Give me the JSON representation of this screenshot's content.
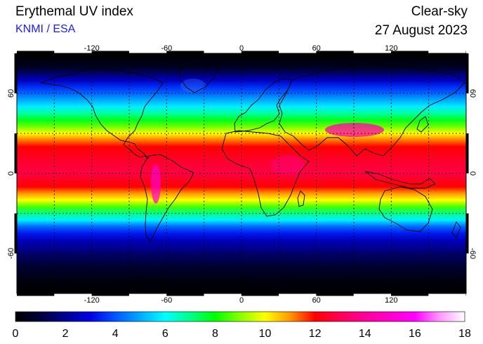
{
  "header": {
    "title": "Erythemal UV index",
    "credit": "KNMI / ESA",
    "mode": "Clear-sky",
    "date": "27 August 2023"
  },
  "map": {
    "projection": "equirectangular",
    "lon_range": [
      -180,
      180
    ],
    "lat_range": [
      -90,
      90
    ],
    "lon_ticks": [
      "-120",
      "-60",
      "0",
      "60",
      "120"
    ],
    "lat_ticks": [
      "60",
      "0",
      "-60"
    ],
    "graticule": "dashed 30°",
    "zonal_uv_profile": [
      {
        "lat": 90,
        "uv": 0
      },
      {
        "lat": 80,
        "uv": 0.5
      },
      {
        "lat": 75,
        "uv": 1.5
      },
      {
        "lat": 70,
        "uv": 2.5
      },
      {
        "lat": 65,
        "uv": 3.5
      },
      {
        "lat": 60,
        "uv": 4.2
      },
      {
        "lat": 55,
        "uv": 5.0
      },
      {
        "lat": 50,
        "uv": 5.8
      },
      {
        "lat": 45,
        "uv": 6.8
      },
      {
        "lat": 40,
        "uv": 7.8
      },
      {
        "lat": 35,
        "uv": 8.8
      },
      {
        "lat": 30,
        "uv": 10.0
      },
      {
        "lat": 25,
        "uv": 11.2
      },
      {
        "lat": 20,
        "uv": 12.0
      },
      {
        "lat": 10,
        "uv": 12.5
      },
      {
        "lat": 0,
        "uv": 12.8
      },
      {
        "lat": -10,
        "uv": 12.0
      },
      {
        "lat": -15,
        "uv": 11.0
      },
      {
        "lat": -20,
        "uv": 10.0
      },
      {
        "lat": -25,
        "uv": 8.5
      },
      {
        "lat": -30,
        "uv": 7.0
      },
      {
        "lat": -35,
        "uv": 5.8
      },
      {
        "lat": -40,
        "uv": 4.2
      },
      {
        "lat": -45,
        "uv": 3.3
      },
      {
        "lat": -50,
        "uv": 2.5
      },
      {
        "lat": -60,
        "uv": 1.6
      },
      {
        "lat": -70,
        "uv": 0.8
      },
      {
        "lat": -80,
        "uv": 0.3
      },
      {
        "lat": -90,
        "uv": 0
      }
    ]
  },
  "colorbar": {
    "min": 0,
    "max": 18,
    "tick_labels": [
      "0",
      "2",
      "4",
      "6",
      "8",
      "10",
      "12",
      "14",
      "16",
      "18"
    ],
    "stops": [
      {
        "value": 0,
        "color": "#000000"
      },
      {
        "value": 1,
        "color": "#00003a"
      },
      {
        "value": 2,
        "color": "#000090"
      },
      {
        "value": 3,
        "color": "#0000e6"
      },
      {
        "value": 4,
        "color": "#0055ff"
      },
      {
        "value": 5,
        "color": "#00aaff"
      },
      {
        "value": 6,
        "color": "#00ffff"
      },
      {
        "value": 7,
        "color": "#00ff88"
      },
      {
        "value": 8,
        "color": "#00ff00"
      },
      {
        "value": 9,
        "color": "#88ff00"
      },
      {
        "value": 10,
        "color": "#ffff00"
      },
      {
        "value": 11,
        "color": "#ff9900"
      },
      {
        "value": 12,
        "color": "#ff0000"
      },
      {
        "value": 13,
        "color": "#ff0055"
      },
      {
        "value": 14,
        "color": "#ff0099"
      },
      {
        "value": 15,
        "color": "#ff00cc"
      },
      {
        "value": 16,
        "color": "#ff00ff"
      },
      {
        "value": 17,
        "color": "#ff99ff"
      },
      {
        "value": 18,
        "color": "#ffffff"
      }
    ]
  }
}
